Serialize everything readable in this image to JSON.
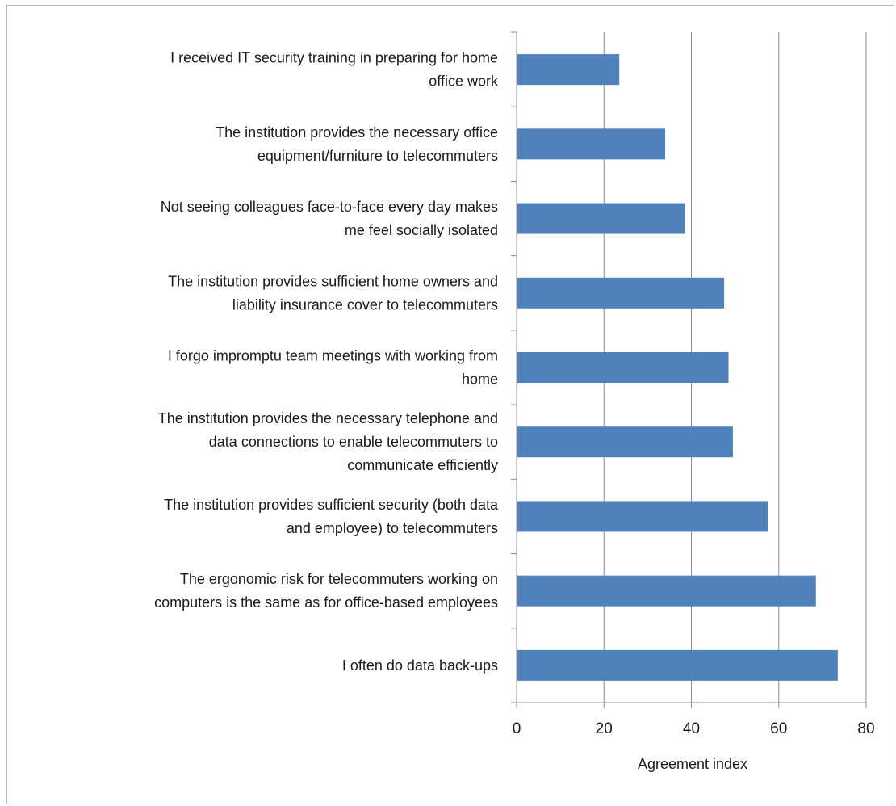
{
  "chart_data": {
    "type": "bar",
    "orientation": "horizontal",
    "categories": [
      [
        "I received IT security training in preparing for home",
        "office work"
      ],
      [
        "The institution provides the necessary office",
        "equipment/furniture to telecommuters"
      ],
      [
        "Not seeing colleagues face-to-face every day makes",
        "me feel socially isolated"
      ],
      [
        "The institution provides sufficient home owners and",
        "liability insurance cover to telecommuters"
      ],
      [
        "I forgo impromptu team meetings with working from",
        "home"
      ],
      [
        "The institution provides the necessary telephone and",
        "data connections to enable telecommuters to",
        "communicate efficiently"
      ],
      [
        "The institution provides sufficient security (both data",
        "and employee) to telecommuters"
      ],
      [
        "The ergonomic risk for telecommuters working on",
        "computers is the same as for office-based employees"
      ],
      [
        "I often do data back-ups"
      ]
    ],
    "values": [
      23.5,
      34,
      38.5,
      47.5,
      48.5,
      49.5,
      57.5,
      68.5,
      73.5
    ],
    "title": "",
    "xlabel": "Agreement index",
    "ylabel": "",
    "xlim": [
      0,
      80
    ],
    "xticks": [
      0,
      20,
      40,
      60,
      80
    ],
    "xtick_labels": [
      "0",
      "20",
      "40",
      "60",
      "80"
    ],
    "grid": "vertical",
    "legend": "none",
    "bar_color": "#4f81bd"
  }
}
